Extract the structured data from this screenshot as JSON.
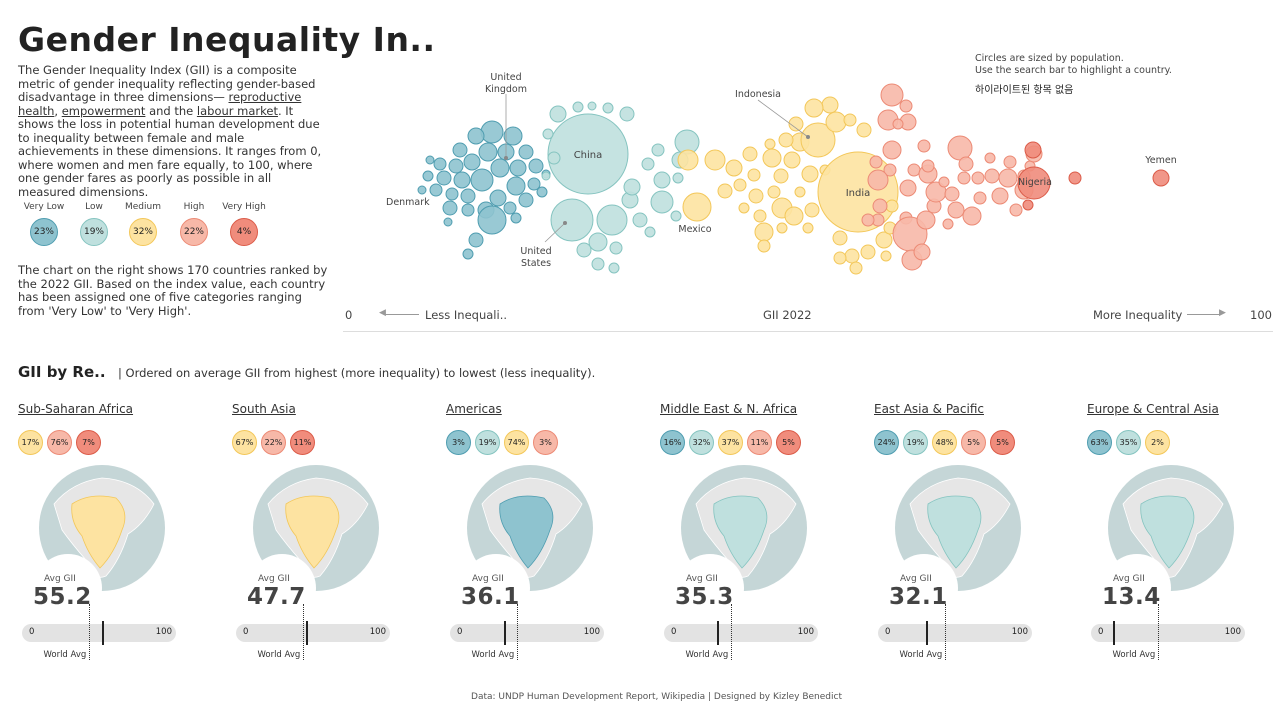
{
  "header": {
    "title": "Gender Inequality In..",
    "intro_a": "The Gender Inequality Index (GII) is a composite metric of gender inequality reflecting gender-based disadvantage in three dimensions— ",
    "link_repro": "reproductive health",
    "sep1": ", ",
    "link_empower": "empowerment",
    "sep2": " and the ",
    "link_labour": "labour market",
    "intro_b": ". It shows the loss in potential human development due to inequality between female and male achievements in these dimensions. It ranges from 0, where women and men fare equally, to 100, where one gender fares as poorly as possible in all measured dimensions.",
    "intro2": "The chart on the right shows 170 countries ranked by the 2022 GII. Based on the index value, each country has been assigned one of five categories ranging from 'Very Low' to 'Very High'."
  },
  "categories": [
    {
      "name": "Very Low",
      "pct": "23%",
      "fill": "#8ec3cf",
      "stroke": "#4f9db0"
    },
    {
      "name": "Low",
      "pct": "19%",
      "fill": "#bfe0de",
      "stroke": "#85c4c0"
    },
    {
      "name": "Medium",
      "pct": "32%",
      "fill": "#fde3a1",
      "stroke": "#f3c759"
    },
    {
      "name": "High",
      "pct": "22%",
      "fill": "#f7b8a8",
      "stroke": "#ec8a75"
    },
    {
      "name": "Very High",
      "pct": "4%",
      "fill": "#f08c7c",
      "stroke": "#db5b48"
    }
  ],
  "bubble_chart": {
    "note_line1": "Circles are sized by population.",
    "note_line2": "Use the search bar to highlight a country.",
    "status": "하이라이트된 항목 없음",
    "labels": {
      "uk_1": "United",
      "uk_2": "Kingdom",
      "denmark": "Denmark",
      "china": "China",
      "us_1": "United",
      "us_2": "States",
      "mexico": "Mexico",
      "indonesia": "Indonesia",
      "india": "India",
      "nigeria": "Nigeria",
      "yemen": "Yemen"
    },
    "axis_min": "0",
    "axis_left_label": "Less Inequali..",
    "axis_title": "GII 2022",
    "axis_right_label": "More Inequality",
    "axis_max": "100"
  },
  "regions_header": {
    "title": "GII by Re..",
    "subtitle": "| Ordered on average GII from highest (more inequality) to lowest (less inequality)."
  },
  "regions": [
    {
      "name": "Sub-Saharan Africa",
      "avg": "55.2",
      "avg_value": 55.2,
      "badges": [
        {
          "pct": "17%",
          "cat": 2
        },
        {
          "pct": "76%",
          "cat": 3
        },
        {
          "pct": "7%",
          "cat": 4
        }
      ]
    },
    {
      "name": "South Asia",
      "avg": "47.7",
      "avg_value": 47.7,
      "badges": [
        {
          "pct": "67%",
          "cat": 2
        },
        {
          "pct": "22%",
          "cat": 3
        },
        {
          "pct": "11%",
          "cat": 4
        }
      ]
    },
    {
      "name": "Americas",
      "avg": "36.1",
      "avg_value": 36.1,
      "badges": [
        {
          "pct": "3%",
          "cat": 0
        },
        {
          "pct": "19%",
          "cat": 1
        },
        {
          "pct": "74%",
          "cat": 2
        },
        {
          "pct": "3%",
          "cat": 3
        }
      ]
    },
    {
      "name": "Middle East & N. Africa",
      "avg": "35.3",
      "avg_value": 35.3,
      "badges": [
        {
          "pct": "16%",
          "cat": 0
        },
        {
          "pct": "32%",
          "cat": 1
        },
        {
          "pct": "37%",
          "cat": 2
        },
        {
          "pct": "11%",
          "cat": 3
        },
        {
          "pct": "5%",
          "cat": 4
        }
      ]
    },
    {
      "name": "East Asia & Pacific",
      "avg": "32.1",
      "avg_value": 32.1,
      "badges": [
        {
          "pct": "24%",
          "cat": 0
        },
        {
          "pct": "19%",
          "cat": 1
        },
        {
          "pct": "48%",
          "cat": 2
        },
        {
          "pct": "5%",
          "cat": 3
        },
        {
          "pct": "5%",
          "cat": 4
        }
      ]
    },
    {
      "name": "Europe & Central Asia",
      "avg": "13.4",
      "avg_value": 13.4,
      "badges": [
        {
          "pct": "63%",
          "cat": 0
        },
        {
          "pct": "35%",
          "cat": 1
        },
        {
          "pct": "2%",
          "cat": 2
        }
      ]
    }
  ],
  "region_labels": {
    "avg_label": "Avg GII",
    "bar_min": "0",
    "bar_max": "100",
    "world_label": "World Avg"
  },
  "world_avg": 46,
  "footer": "Data: UNDP Human Development Report, Wikipedia  |  Designed by Kizley Benedict"
}
